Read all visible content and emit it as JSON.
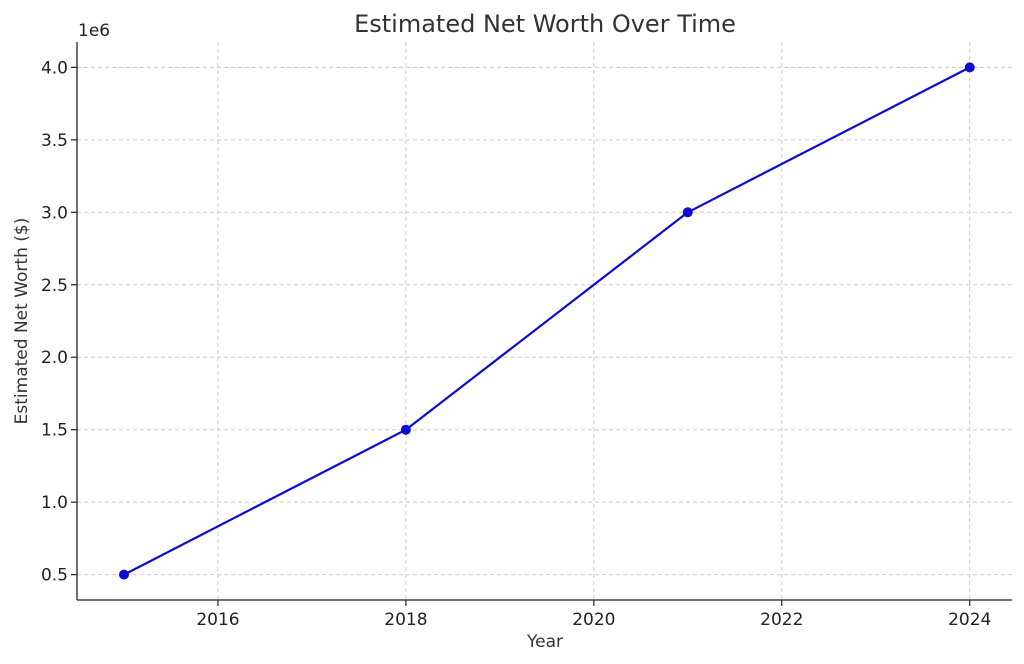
{
  "chart_data": {
    "type": "line",
    "title": "Estimated Net Worth Over Time",
    "xlabel": "Year",
    "ylabel": "Estimated Net Worth ($)",
    "y_offset_label": "1e6",
    "x": [
      2015,
      2018,
      2021,
      2024
    ],
    "series": [
      {
        "values": [
          500000,
          1500000,
          3000000,
          4000000
        ],
        "color": "#0c0cd2"
      }
    ],
    "xlim": [
      2014.5,
      2024.45
    ],
    "ylim": [
      325000,
      4175000
    ],
    "x_ticks": [
      2016,
      2018,
      2020,
      2022,
      2024
    ],
    "x_tick_labels": [
      "2016",
      "2018",
      "2020",
      "2022",
      "2024"
    ],
    "y_ticks": [
      500000,
      1000000,
      1500000,
      2000000,
      2500000,
      3000000,
      3500000,
      4000000
    ],
    "y_tick_labels": [
      "0.5",
      "1.0",
      "1.5",
      "2.0",
      "2.5",
      "3.0",
      "3.5",
      "4.0"
    ],
    "grid": true,
    "marker": "circle"
  }
}
